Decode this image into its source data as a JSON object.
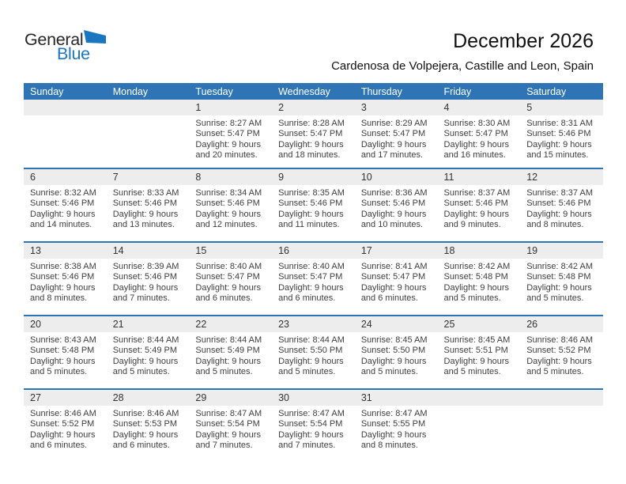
{
  "logo": {
    "word1": "General",
    "word2": "Blue"
  },
  "title": "December 2026",
  "subtitle": "Cardenosa de Volpejera, Castille and Leon, Spain",
  "colors": {
    "header_blue": "#2f75b5",
    "row_stripe": "#ededed",
    "logo_blue": "#1b76c0"
  },
  "calendar": {
    "day_headers": [
      "Sunday",
      "Monday",
      "Tuesday",
      "Wednesday",
      "Thursday",
      "Friday",
      "Saturday"
    ],
    "weeks": [
      [
        null,
        null,
        {
          "day": "1",
          "sunrise": "Sunrise: 8:27 AM",
          "sunset": "Sunset: 5:47 PM",
          "daylight": "Daylight: 9 hours and 20 minutes."
        },
        {
          "day": "2",
          "sunrise": "Sunrise: 8:28 AM",
          "sunset": "Sunset: 5:47 PM",
          "daylight": "Daylight: 9 hours and 18 minutes."
        },
        {
          "day": "3",
          "sunrise": "Sunrise: 8:29 AM",
          "sunset": "Sunset: 5:47 PM",
          "daylight": "Daylight: 9 hours and 17 minutes."
        },
        {
          "day": "4",
          "sunrise": "Sunrise: 8:30 AM",
          "sunset": "Sunset: 5:47 PM",
          "daylight": "Daylight: 9 hours and 16 minutes."
        },
        {
          "day": "5",
          "sunrise": "Sunrise: 8:31 AM",
          "sunset": "Sunset: 5:46 PM",
          "daylight": "Daylight: 9 hours and 15 minutes."
        }
      ],
      [
        {
          "day": "6",
          "sunrise": "Sunrise: 8:32 AM",
          "sunset": "Sunset: 5:46 PM",
          "daylight": "Daylight: 9 hours and 14 minutes."
        },
        {
          "day": "7",
          "sunrise": "Sunrise: 8:33 AM",
          "sunset": "Sunset: 5:46 PM",
          "daylight": "Daylight: 9 hours and 13 minutes."
        },
        {
          "day": "8",
          "sunrise": "Sunrise: 8:34 AM",
          "sunset": "Sunset: 5:46 PM",
          "daylight": "Daylight: 9 hours and 12 minutes."
        },
        {
          "day": "9",
          "sunrise": "Sunrise: 8:35 AM",
          "sunset": "Sunset: 5:46 PM",
          "daylight": "Daylight: 9 hours and 11 minutes."
        },
        {
          "day": "10",
          "sunrise": "Sunrise: 8:36 AM",
          "sunset": "Sunset: 5:46 PM",
          "daylight": "Daylight: 9 hours and 10 minutes."
        },
        {
          "day": "11",
          "sunrise": "Sunrise: 8:37 AM",
          "sunset": "Sunset: 5:46 PM",
          "daylight": "Daylight: 9 hours and 9 minutes."
        },
        {
          "day": "12",
          "sunrise": "Sunrise: 8:37 AM",
          "sunset": "Sunset: 5:46 PM",
          "daylight": "Daylight: 9 hours and 8 minutes."
        }
      ],
      [
        {
          "day": "13",
          "sunrise": "Sunrise: 8:38 AM",
          "sunset": "Sunset: 5:46 PM",
          "daylight": "Daylight: 9 hours and 8 minutes."
        },
        {
          "day": "14",
          "sunrise": "Sunrise: 8:39 AM",
          "sunset": "Sunset: 5:46 PM",
          "daylight": "Daylight: 9 hours and 7 minutes."
        },
        {
          "day": "15",
          "sunrise": "Sunrise: 8:40 AM",
          "sunset": "Sunset: 5:47 PM",
          "daylight": "Daylight: 9 hours and 6 minutes."
        },
        {
          "day": "16",
          "sunrise": "Sunrise: 8:40 AM",
          "sunset": "Sunset: 5:47 PM",
          "daylight": "Daylight: 9 hours and 6 minutes."
        },
        {
          "day": "17",
          "sunrise": "Sunrise: 8:41 AM",
          "sunset": "Sunset: 5:47 PM",
          "daylight": "Daylight: 9 hours and 6 minutes."
        },
        {
          "day": "18",
          "sunrise": "Sunrise: 8:42 AM",
          "sunset": "Sunset: 5:48 PM",
          "daylight": "Daylight: 9 hours and 5 minutes."
        },
        {
          "day": "19",
          "sunrise": "Sunrise: 8:42 AM",
          "sunset": "Sunset: 5:48 PM",
          "daylight": "Daylight: 9 hours and 5 minutes."
        }
      ],
      [
        {
          "day": "20",
          "sunrise": "Sunrise: 8:43 AM",
          "sunset": "Sunset: 5:48 PM",
          "daylight": "Daylight: 9 hours and 5 minutes."
        },
        {
          "day": "21",
          "sunrise": "Sunrise: 8:44 AM",
          "sunset": "Sunset: 5:49 PM",
          "daylight": "Daylight: 9 hours and 5 minutes."
        },
        {
          "day": "22",
          "sunrise": "Sunrise: 8:44 AM",
          "sunset": "Sunset: 5:49 PM",
          "daylight": "Daylight: 9 hours and 5 minutes."
        },
        {
          "day": "23",
          "sunrise": "Sunrise: 8:44 AM",
          "sunset": "Sunset: 5:50 PM",
          "daylight": "Daylight: 9 hours and 5 minutes."
        },
        {
          "day": "24",
          "sunrise": "Sunrise: 8:45 AM",
          "sunset": "Sunset: 5:50 PM",
          "daylight": "Daylight: 9 hours and 5 minutes."
        },
        {
          "day": "25",
          "sunrise": "Sunrise: 8:45 AM",
          "sunset": "Sunset: 5:51 PM",
          "daylight": "Daylight: 9 hours and 5 minutes."
        },
        {
          "day": "26",
          "sunrise": "Sunrise: 8:46 AM",
          "sunset": "Sunset: 5:52 PM",
          "daylight": "Daylight: 9 hours and 5 minutes."
        }
      ],
      [
        {
          "day": "27",
          "sunrise": "Sunrise: 8:46 AM",
          "sunset": "Sunset: 5:52 PM",
          "daylight": "Daylight: 9 hours and 6 minutes."
        },
        {
          "day": "28",
          "sunrise": "Sunrise: 8:46 AM",
          "sunset": "Sunset: 5:53 PM",
          "daylight": "Daylight: 9 hours and 6 minutes."
        },
        {
          "day": "29",
          "sunrise": "Sunrise: 8:47 AM",
          "sunset": "Sunset: 5:54 PM",
          "daylight": "Daylight: 9 hours and 7 minutes."
        },
        {
          "day": "30",
          "sunrise": "Sunrise: 8:47 AM",
          "sunset": "Sunset: 5:54 PM",
          "daylight": "Daylight: 9 hours and 7 minutes."
        },
        {
          "day": "31",
          "sunrise": "Sunrise: 8:47 AM",
          "sunset": "Sunset: 5:55 PM",
          "daylight": "Daylight: 9 hours and 8 minutes."
        },
        null,
        null
      ]
    ]
  }
}
